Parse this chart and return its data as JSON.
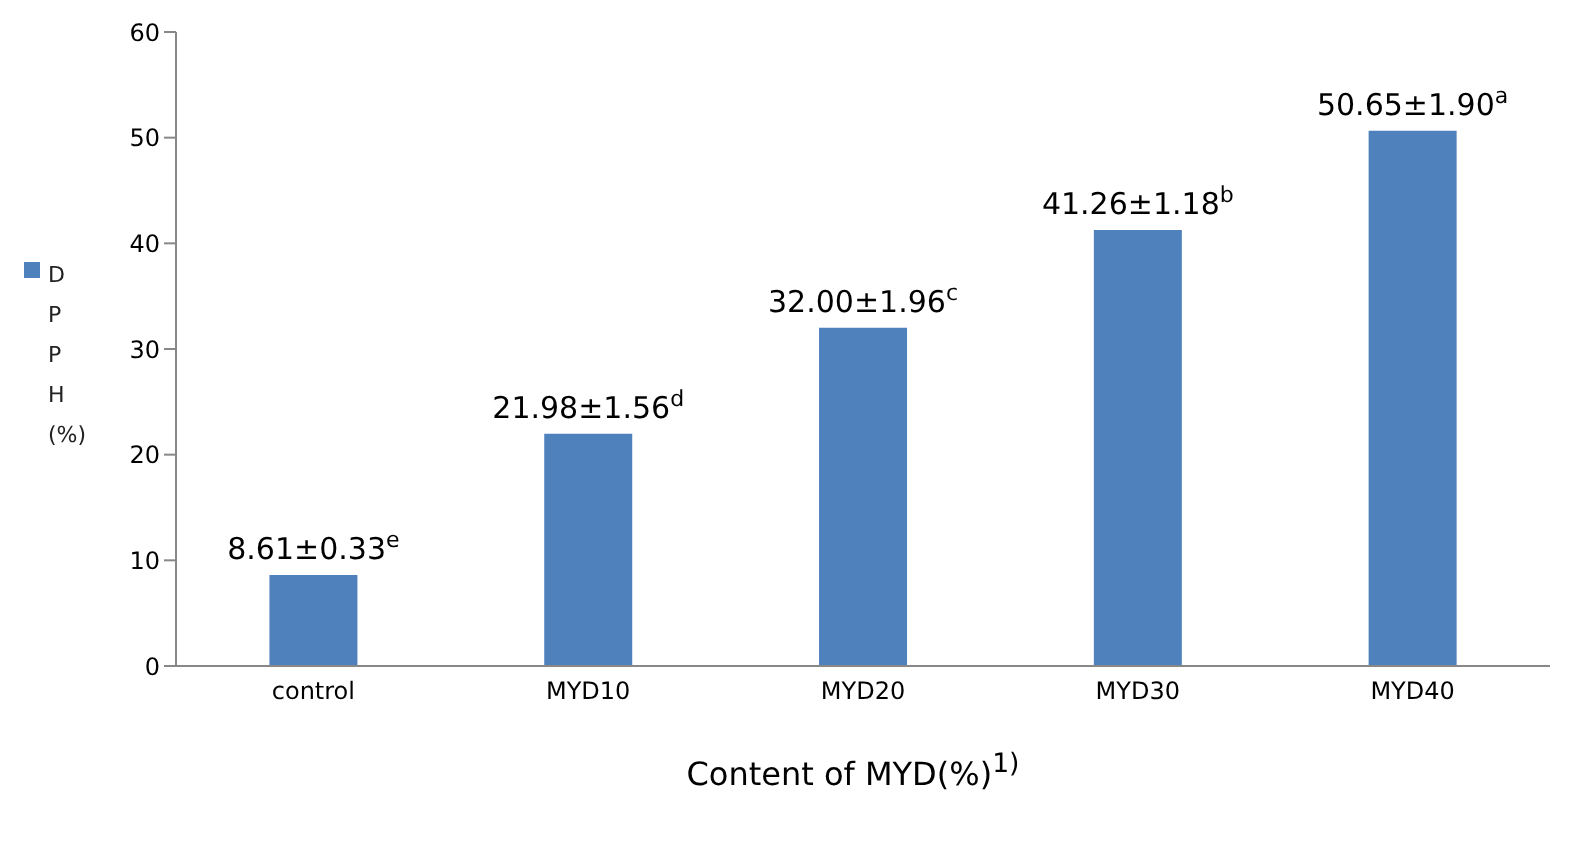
{
  "chart_data": {
    "type": "bar",
    "xlabel": "Content of MYD(%)$^{1)}$",
    "categories": [
      "control",
      "MYD10",
      "MYD20",
      "MYD30",
      "MYD40"
    ],
    "series": [
      {
        "name": "DPPH (%)",
        "color": "#4f81bd",
        "values": [
          8.61,
          21.98,
          32.0,
          41.26,
          50.65
        ],
        "value_labels": [
          "8.61±0.33$^{e}$",
          "21.98±1.56$^{d}$",
          "32.00±1.96$^{c}$",
          "41.26±1.18$^{b}$",
          "50.65±1.90$^{a}$"
        ]
      }
    ],
    "ylim": [
      0,
      60
    ],
    "yticks": [
      0,
      10,
      20,
      30,
      40,
      50,
      60
    ],
    "grid": false,
    "legend": "left"
  }
}
